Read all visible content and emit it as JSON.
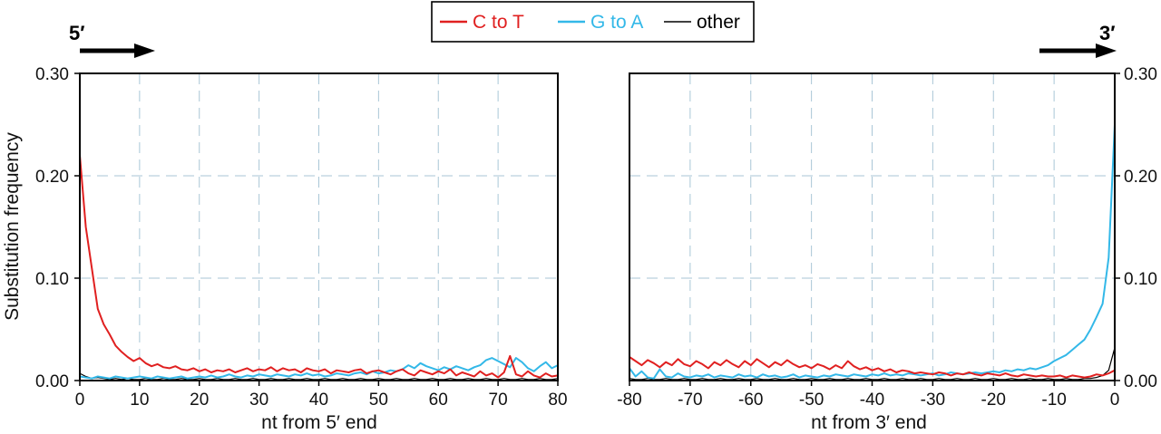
{
  "chart_data": [
    {
      "panel": "5prime",
      "type": "line",
      "end_label": "5′",
      "xlabel": "nt from 5′ end",
      "ylabel": "Substitution frequency",
      "xlim": [
        0,
        80
      ],
      "ylim": [
        0,
        0.3
      ],
      "x_ticks": [
        "0",
        "10",
        "20",
        "30",
        "40",
        "50",
        "60",
        "70",
        "80"
      ],
      "y_ticks": [
        "0.00",
        "0.10",
        "0.20",
        "0.30"
      ],
      "grid": true,
      "x": [
        0,
        1,
        2,
        3,
        4,
        5,
        6,
        7,
        8,
        9,
        10,
        11,
        12,
        13,
        14,
        15,
        16,
        17,
        18,
        19,
        20,
        21,
        22,
        23,
        24,
        25,
        26,
        27,
        28,
        29,
        30,
        31,
        32,
        33,
        34,
        35,
        36,
        37,
        38,
        39,
        40,
        41,
        42,
        43,
        44,
        45,
        46,
        47,
        48,
        49,
        50,
        51,
        52,
        53,
        54,
        55,
        56,
        57,
        58,
        59,
        60,
        61,
        62,
        63,
        64,
        65,
        66,
        67,
        68,
        69,
        70,
        71,
        72,
        73,
        74,
        75,
        76,
        77,
        78,
        79,
        80
      ],
      "series": [
        {
          "name": "C to T",
          "color": "#e02020",
          "values": [
            0.22,
            0.15,
            0.11,
            0.07,
            0.055,
            0.045,
            0.034,
            0.028,
            0.023,
            0.019,
            0.022,
            0.017,
            0.014,
            0.016,
            0.013,
            0.012,
            0.014,
            0.011,
            0.01,
            0.012,
            0.009,
            0.011,
            0.008,
            0.01,
            0.009,
            0.011,
            0.008,
            0.01,
            0.012,
            0.009,
            0.011,
            0.01,
            0.013,
            0.009,
            0.012,
            0.01,
            0.011,
            0.008,
            0.012,
            0.01,
            0.009,
            0.011,
            0.007,
            0.01,
            0.009,
            0.008,
            0.01,
            0.011,
            0.007,
            0.009,
            0.01,
            0.008,
            0.006,
            0.009,
            0.011,
            0.007,
            0.005,
            0.01,
            0.008,
            0.006,
            0.009,
            0.007,
            0.011,
            0.005,
            0.008,
            0.006,
            0.004,
            0.009,
            0.005,
            0.007,
            0.003,
            0.008,
            0.024,
            0.006,
            0.004,
            0.009,
            0.005,
            0.003,
            0.007,
            0.004,
            0.005
          ]
        },
        {
          "name": "G to A",
          "color": "#33b8e8",
          "values": [
            0.004,
            0.003,
            0.002,
            0.004,
            0.003,
            0.002,
            0.004,
            0.003,
            0.002,
            0.003,
            0.004,
            0.003,
            0.002,
            0.004,
            0.003,
            0.002,
            0.003,
            0.004,
            0.002,
            0.003,
            0.004,
            0.003,
            0.005,
            0.003,
            0.004,
            0.006,
            0.004,
            0.003,
            0.005,
            0.004,
            0.006,
            0.005,
            0.004,
            0.006,
            0.005,
            0.004,
            0.006,
            0.005,
            0.007,
            0.005,
            0.006,
            0.004,
            0.005,
            0.007,
            0.006,
            0.005,
            0.007,
            0.008,
            0.006,
            0.009,
            0.007,
            0.008,
            0.01,
            0.009,
            0.011,
            0.015,
            0.012,
            0.017,
            0.014,
            0.012,
            0.01,
            0.013,
            0.011,
            0.014,
            0.012,
            0.01,
            0.013,
            0.015,
            0.02,
            0.022,
            0.019,
            0.016,
            0.013,
            0.022,
            0.018,
            0.012,
            0.009,
            0.014,
            0.018,
            0.012,
            0.015
          ]
        },
        {
          "name": "other",
          "color": "#000000",
          "values": [
            0.007,
            0.004,
            0.002,
            0.003,
            0.002,
            0.001,
            0.002,
            0.001,
            0.002,
            0.001,
            0.001,
            0.002,
            0.001,
            0.001,
            0.002,
            0.001,
            0.001,
            0.002,
            0.001,
            0.001,
            0.002,
            0.001,
            0.001,
            0.002,
            0.001,
            0.001,
            0.002,
            0.001,
            0.001,
            0.002,
            0.001,
            0.001,
            0.002,
            0.001,
            0.001,
            0.002,
            0.001,
            0.001,
            0.002,
            0.001,
            0.001,
            0.002,
            0.001,
            0.001,
            0.002,
            0.001,
            0.001,
            0.002,
            0.001,
            0.001,
            0.002,
            0.001,
            0.001,
            0.002,
            0.001,
            0.001,
            0.002,
            0.001,
            0.001,
            0.002,
            0.001,
            0.001,
            0.002,
            0.001,
            0.001,
            0.002,
            0.001,
            0.001,
            0.002,
            0.001,
            0.001,
            0.002,
            0.001,
            0.001,
            0.002,
            0.001,
            0.001,
            0.002,
            0.001,
            0.001,
            0.002
          ]
        }
      ]
    },
    {
      "panel": "3prime",
      "type": "line",
      "end_label": "3′",
      "xlabel": "nt from 3′ end",
      "ylabel": "",
      "xlim": [
        -80,
        0
      ],
      "ylim": [
        0,
        0.3
      ],
      "x_ticks": [
        "-80",
        "-70",
        "-60",
        "-50",
        "-40",
        "-30",
        "-20",
        "-10",
        "0"
      ],
      "y_ticks": [
        "0.00",
        "0.10",
        "0.20",
        "0.30"
      ],
      "grid": true,
      "x": [
        -80,
        -79,
        -78,
        -77,
        -76,
        -75,
        -74,
        -73,
        -72,
        -71,
        -70,
        -69,
        -68,
        -67,
        -66,
        -65,
        -64,
        -63,
        -62,
        -61,
        -60,
        -59,
        -58,
        -57,
        -56,
        -55,
        -54,
        -53,
        -52,
        -51,
        -50,
        -49,
        -48,
        -47,
        -46,
        -45,
        -44,
        -43,
        -42,
        -41,
        -40,
        -39,
        -38,
        -37,
        -36,
        -35,
        -34,
        -33,
        -32,
        -31,
        -30,
        -29,
        -28,
        -27,
        -26,
        -25,
        -24,
        -23,
        -22,
        -21,
        -20,
        -19,
        -18,
        -17,
        -16,
        -15,
        -14,
        -13,
        -12,
        -11,
        -10,
        -9,
        -8,
        -7,
        -6,
        -5,
        -4,
        -3,
        -2,
        -1,
        0
      ],
      "series": [
        {
          "name": "C to T",
          "color": "#e02020",
          "values": [
            0.023,
            0.019,
            0.015,
            0.02,
            0.017,
            0.013,
            0.018,
            0.015,
            0.021,
            0.016,
            0.014,
            0.019,
            0.016,
            0.012,
            0.018,
            0.015,
            0.02,
            0.016,
            0.013,
            0.019,
            0.015,
            0.021,
            0.017,
            0.013,
            0.018,
            0.015,
            0.02,
            0.016,
            0.013,
            0.015,
            0.012,
            0.016,
            0.014,
            0.011,
            0.015,
            0.012,
            0.019,
            0.014,
            0.011,
            0.013,
            0.01,
            0.012,
            0.009,
            0.011,
            0.008,
            0.01,
            0.009,
            0.007,
            0.008,
            0.007,
            0.006,
            0.008,
            0.007,
            0.005,
            0.007,
            0.006,
            0.008,
            0.006,
            0.005,
            0.007,
            0.006,
            0.005,
            0.007,
            0.005,
            0.004,
            0.006,
            0.005,
            0.004,
            0.005,
            0.004,
            0.004,
            0.005,
            0.003,
            0.005,
            0.004,
            0.003,
            0.004,
            0.006,
            0.005,
            0.007,
            0.01
          ]
        },
        {
          "name": "G to A",
          "color": "#33b8e8",
          "values": [
            0.012,
            0.004,
            0.009,
            0.003,
            0.002,
            0.011,
            0.004,
            0.003,
            0.007,
            0.004,
            0.003,
            0.005,
            0.004,
            0.006,
            0.003,
            0.005,
            0.004,
            0.003,
            0.006,
            0.004,
            0.005,
            0.003,
            0.006,
            0.004,
            0.005,
            0.003,
            0.004,
            0.006,
            0.003,
            0.005,
            0.004,
            0.003,
            0.005,
            0.004,
            0.006,
            0.005,
            0.004,
            0.006,
            0.005,
            0.004,
            0.006,
            0.005,
            0.007,
            0.005,
            0.006,
            0.005,
            0.007,
            0.006,
            0.005,
            0.006,
            0.007,
            0.005,
            0.006,
            0.008,
            0.007,
            0.006,
            0.007,
            0.008,
            0.007,
            0.008,
            0.009,
            0.008,
            0.01,
            0.009,
            0.011,
            0.01,
            0.012,
            0.011,
            0.013,
            0.015,
            0.019,
            0.022,
            0.025,
            0.03,
            0.035,
            0.04,
            0.05,
            0.062,
            0.075,
            0.12,
            0.25
          ]
        },
        {
          "name": "other",
          "color": "#000000",
          "values": [
            0.002,
            0.001,
            0.001,
            0.002,
            0.001,
            0.001,
            0.002,
            0.001,
            0.001,
            0.002,
            0.001,
            0.001,
            0.002,
            0.001,
            0.001,
            0.002,
            0.001,
            0.001,
            0.002,
            0.001,
            0.001,
            0.002,
            0.001,
            0.001,
            0.002,
            0.001,
            0.001,
            0.002,
            0.001,
            0.001,
            0.002,
            0.001,
            0.001,
            0.002,
            0.001,
            0.001,
            0.002,
            0.001,
            0.001,
            0.002,
            0.001,
            0.001,
            0.002,
            0.001,
            0.001,
            0.002,
            0.001,
            0.001,
            0.002,
            0.001,
            0.001,
            0.002,
            0.001,
            0.001,
            0.002,
            0.001,
            0.001,
            0.002,
            0.001,
            0.001,
            0.002,
            0.001,
            0.001,
            0.002,
            0.001,
            0.001,
            0.002,
            0.001,
            0.001,
            0.002,
            0.001,
            0.001,
            0.002,
            0.001,
            0.001,
            0.002,
            0.002,
            0.003,
            0.005,
            0.01,
            0.032
          ]
        }
      ]
    }
  ],
  "legend": {
    "placement": "top-center",
    "items": [
      {
        "label": "C to T",
        "color": "#e02020"
      },
      {
        "label": "G to A",
        "color": "#33b8e8"
      },
      {
        "label": "other",
        "color": "#000000"
      }
    ]
  }
}
